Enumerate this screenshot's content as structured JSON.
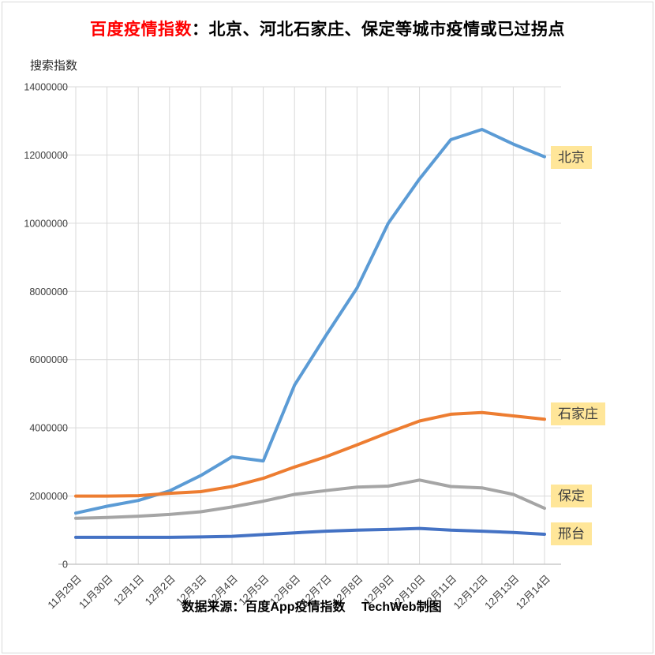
{
  "page": {
    "title_red": "百度疫情指数",
    "title_rest": "：北京、河北石家庄、保定等城市疫情或已过拐点",
    "y_axis_title": "搜索指数",
    "footer": "数据来源：百度App疫情指数　 TechWeb制图"
  },
  "chart_data": {
    "type": "line",
    "title": "百度疫情指数：北京、河北石家庄、保定等城市疫情或已过拐点",
    "xlabel": "",
    "ylabel": "搜索指数",
    "ylim": [
      0,
      14000000
    ],
    "yticks": [
      0,
      2000000,
      4000000,
      6000000,
      8000000,
      10000000,
      12000000,
      14000000
    ],
    "grid": true,
    "legend_position": "right-inline-labels",
    "categories": [
      "11月29日",
      "11月30日",
      "12月1日",
      "12月2日",
      "12月3日",
      "12月4日",
      "12月5日",
      "12月6日",
      "12月7日",
      "12月8日",
      "12月9日",
      "12月10日",
      "12月11日",
      "12月12日",
      "12月13日",
      "12月14日"
    ],
    "series": [
      {
        "key": "beijing",
        "name": "北京",
        "color": "#5B9BD5",
        "values": [
          1500000,
          1700000,
          1870000,
          2150000,
          2600000,
          3150000,
          3030000,
          5250000,
          6700000,
          8100000,
          10000000,
          11300000,
          12450000,
          12750000,
          12320000,
          11950000
        ]
      },
      {
        "key": "shijiazhuang",
        "name": "石家庄",
        "color": "#ED7D31",
        "values": [
          2000000,
          2000000,
          2010000,
          2080000,
          2130000,
          2280000,
          2520000,
          2850000,
          3150000,
          3500000,
          3860000,
          4200000,
          4400000,
          4450000,
          4350000,
          4250000
        ]
      },
      {
        "key": "baoding",
        "name": "保定",
        "color": "#A5A5A5",
        "values": [
          1350000,
          1370000,
          1410000,
          1460000,
          1540000,
          1680000,
          1850000,
          2050000,
          2160000,
          2260000,
          2290000,
          2470000,
          2280000,
          2240000,
          2050000,
          1640000
        ]
      },
      {
        "key": "xingtai",
        "name": "邢台",
        "color": "#4472C4",
        "values": [
          790000,
          790000,
          790000,
          790000,
          800000,
          820000,
          870000,
          920000,
          970000,
          1000000,
          1020000,
          1050000,
          1000000,
          970000,
          930000,
          880000
        ]
      }
    ],
    "label_colors": {
      "background": "#FFE699",
      "text": "#3F3F3F"
    },
    "axis_colors": {
      "grid": "#D9D9D9",
      "axis": "#BFBFBF",
      "tick_text": "#404040"
    }
  }
}
